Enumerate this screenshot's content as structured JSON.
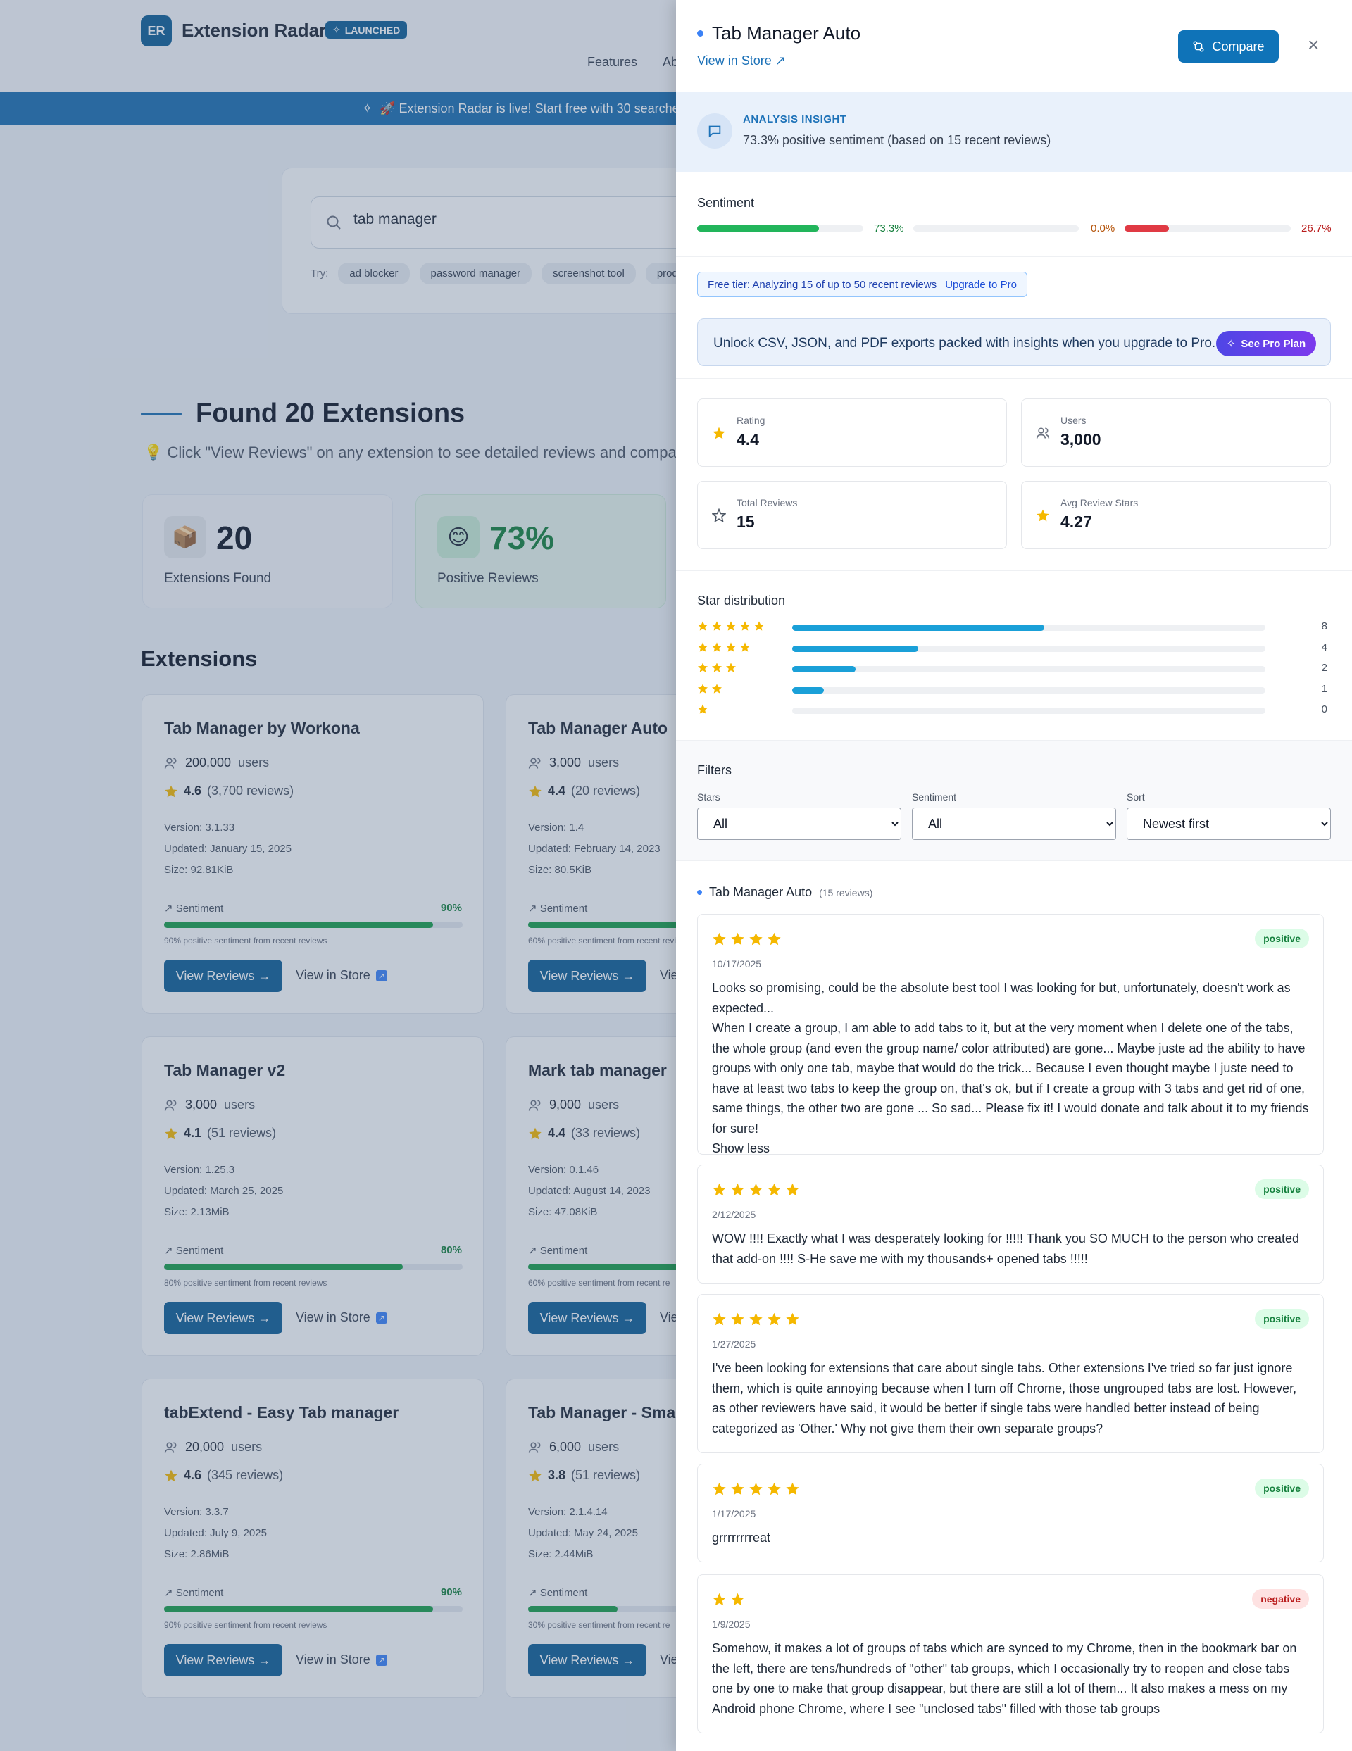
{
  "app": {
    "logo_text": "ER",
    "name": "Extension Radar",
    "badge": "LAUNCHED"
  },
  "nav": {
    "links": [
      "Features",
      "Ab"
    ]
  },
  "banner": {
    "text": "🚀 Extension Radar is live! Start free with 30 searche"
  },
  "search": {
    "value": "tab manager",
    "try_label": "Try:",
    "chips": [
      "ad blocker",
      "password manager",
      "screenshot tool",
      "producti"
    ]
  },
  "results": {
    "heading": "Found 20 Extensions",
    "hint": "💡  Click \"View Reviews\" on any extension to see detailed reviews and compa",
    "stats": [
      {
        "icon": "📦",
        "value": "20",
        "label": "Extensions Found"
      },
      {
        "icon": "😊",
        "value": "73%",
        "label": "Positive Reviews"
      }
    ],
    "section_title": "Extensions"
  },
  "extensions": [
    {
      "name": "Tab Manager by Workona",
      "users": "200,000",
      "users_suffix": "users",
      "rating": "4.6",
      "reviews": "(3,700 reviews)",
      "version": "3.1.33",
      "updated": "January 15, 2025",
      "size": "92.81KiB",
      "sentiment_pct": "90%",
      "sentiment_value": 90,
      "note": "90% positive sentiment from recent reviews"
    },
    {
      "name": "Tab Manager Auto",
      "users": "3,000",
      "users_suffix": "users",
      "rating": "4.4",
      "reviews": "(20 reviews)",
      "version": "1.4",
      "updated": "February 14, 2023",
      "size": "80.5KiB",
      "sentiment_pct": "60%",
      "sentiment_value": 60,
      "note": "60% positive sentiment from recent reviews"
    },
    {
      "name": "Tab Manager v2",
      "users": "3,000",
      "users_suffix": "users",
      "rating": "4.1",
      "reviews": "(51 reviews)",
      "version": "1.25.3",
      "updated": "March 25, 2025",
      "size": "2.13MiB",
      "sentiment_pct": "80%",
      "sentiment_value": 80,
      "note": "80% positive sentiment from recent reviews"
    },
    {
      "name": "Mark tab manager",
      "users": "9,000",
      "users_suffix": "users",
      "rating": "4.4",
      "reviews": "(33 reviews)",
      "version": "0.1.46",
      "updated": "August 14, 2023",
      "size": "47.08KiB",
      "sentiment_pct": "60%",
      "sentiment_value": 60,
      "note": "60% positive sentiment from recent re"
    },
    {
      "name": "tabExtend - Easy Tab manager",
      "users": "20,000",
      "users_suffix": "users",
      "rating": "4.6",
      "reviews": "(345 reviews)",
      "version": "3.3.7",
      "updated": "July 9, 2025",
      "size": "2.86MiB",
      "sentiment_pct": "90%",
      "sentiment_value": 90,
      "note": "90% positive sentiment from recent reviews"
    },
    {
      "name": "Tab Manager - Smart",
      "users": "6,000",
      "users_suffix": "users",
      "rating": "3.8",
      "reviews": "(51 reviews)",
      "version": "2.1.4.14",
      "updated": "May 24, 2025",
      "size": "2.44MiB",
      "sentiment_pct": "30%",
      "sentiment_value": 30,
      "note": "30% positive sentiment from recent re"
    }
  ],
  "card_labels": {
    "version": "Version:",
    "updated": "Updated:",
    "size": "Size:",
    "sentiment": "Sentiment",
    "view_reviews": "View Reviews →",
    "view_store": "View in Store",
    "view_store_short": "Vie"
  },
  "panel": {
    "title": "Tab Manager Auto",
    "store_link": "View in Store ↗",
    "compare_label": "Compare",
    "close_symbol": "×",
    "insight_label": "ANALYSIS INSIGHT",
    "insight_text": "73.3% positive sentiment (based on 15 recent reviews)",
    "sentiment_label": "Sentiment",
    "sentiment": {
      "positive": {
        "label": "73.3%",
        "value": 73.3,
        "color": "#22b55b"
      },
      "neutral": {
        "label": "0.0%",
        "value": 0.0,
        "color": "#d97706"
      },
      "negative": {
        "label": "26.7%",
        "value": 26.7,
        "color": "#e03a44"
      }
    },
    "free_tier_text": "Free tier: Analyzing 15 of up to 50 recent reviews",
    "upgrade_link": "Upgrade to Pro",
    "unlock_text": "Unlock CSV, JSON, and PDF exports packed with insights when you upgrade to Pro.",
    "pro_button": "See Pro Plan",
    "metrics": [
      {
        "icon": "star-filled",
        "label": "Rating",
        "value": "4.4"
      },
      {
        "icon": "users",
        "label": "Users",
        "value": "3,000"
      },
      {
        "icon": "star-outline",
        "label": "Total Reviews",
        "value": "15"
      },
      {
        "icon": "star-filled",
        "label": "Avg Review Stars",
        "value": "4.27"
      }
    ],
    "star_dist_label": "Star distribution",
    "star_distribution": [
      {
        "stars": 5,
        "count": "8",
        "value": 8
      },
      {
        "stars": 4,
        "count": "4",
        "value": 4
      },
      {
        "stars": 3,
        "count": "2",
        "value": 2
      },
      {
        "stars": 2,
        "count": "1",
        "value": 1
      },
      {
        "stars": 1,
        "count": "0",
        "value": 0
      }
    ],
    "star_dist_max": 15,
    "filters": {
      "title": "Filters",
      "stars_label": "Stars",
      "stars_value": "All",
      "sentiment_label": "Sentiment",
      "sentiment_value": "All",
      "sort_label": "Sort",
      "sort_value": "Newest first"
    },
    "review_list_title": "Tab Manager Auto",
    "review_count": "(15 reviews)",
    "reviews": [
      {
        "stars": 4,
        "date": "10/17/2025",
        "sentiment": "positive",
        "text": "Looks so promising, could be the absolute best tool I was looking for but, unfortunately, doesn't work as expected...\nWhen I create a group, I am able to add tabs to it, but at the very moment when I delete one of the tabs, the whole group (and even the group name/ color attributed) are gone... Maybe juste ad the ability to have groups with only one tab, maybe that would do the trick... Because I even thought maybe I juste need to have at least two tabs to keep the group on, that's ok, but if I create a group with 3 tabs and get rid of one, same things, the other two are gone ... So sad... Please fix it! I would donate and talk about it to my friends for sure!\nShow less"
      },
      {
        "stars": 5,
        "date": "2/12/2025",
        "sentiment": "positive",
        "text": "WOW !!!! Exactly what I was desperately looking for !!!!! Thank you SO MUCH to the person who created that add-on !!!! S-He save me with my thousands+ opened tabs !!!!!"
      },
      {
        "stars": 5,
        "date": "1/27/2025",
        "sentiment": "positive",
        "text": "I've been looking for extensions that care about single tabs. Other extensions I've tried so far just ignore them, which is quite annoying because when I turn off Chrome, those ungrouped tabs are lost. However, as other reviewers have said, it would be better if single tabs were handled better instead of being categorized as 'Other.' Why not give them their own separate groups?"
      },
      {
        "stars": 5,
        "date": "1/17/2025",
        "sentiment": "positive",
        "text": "grrrrrrrreat"
      },
      {
        "stars": 2,
        "date": "1/9/2025",
        "sentiment": "negative",
        "text": "Somehow, it makes a lot of groups of tabs which are synced to my Chrome, then in the bookmark bar on the left, there are tens/hundreds of \"other\" tab groups, which I occasionally try to reopen and close tabs one by one to make that group disappear, but there are still a lot of them... It also makes a mess on my Android phone Chrome, where I see \"unclosed tabs\" filled with those tab groups"
      }
    ]
  },
  "colors": {
    "accent": "#0f5f96",
    "positive": "#1a9e4b",
    "star": "#f5b800",
    "bar": "#1aa0d8"
  }
}
